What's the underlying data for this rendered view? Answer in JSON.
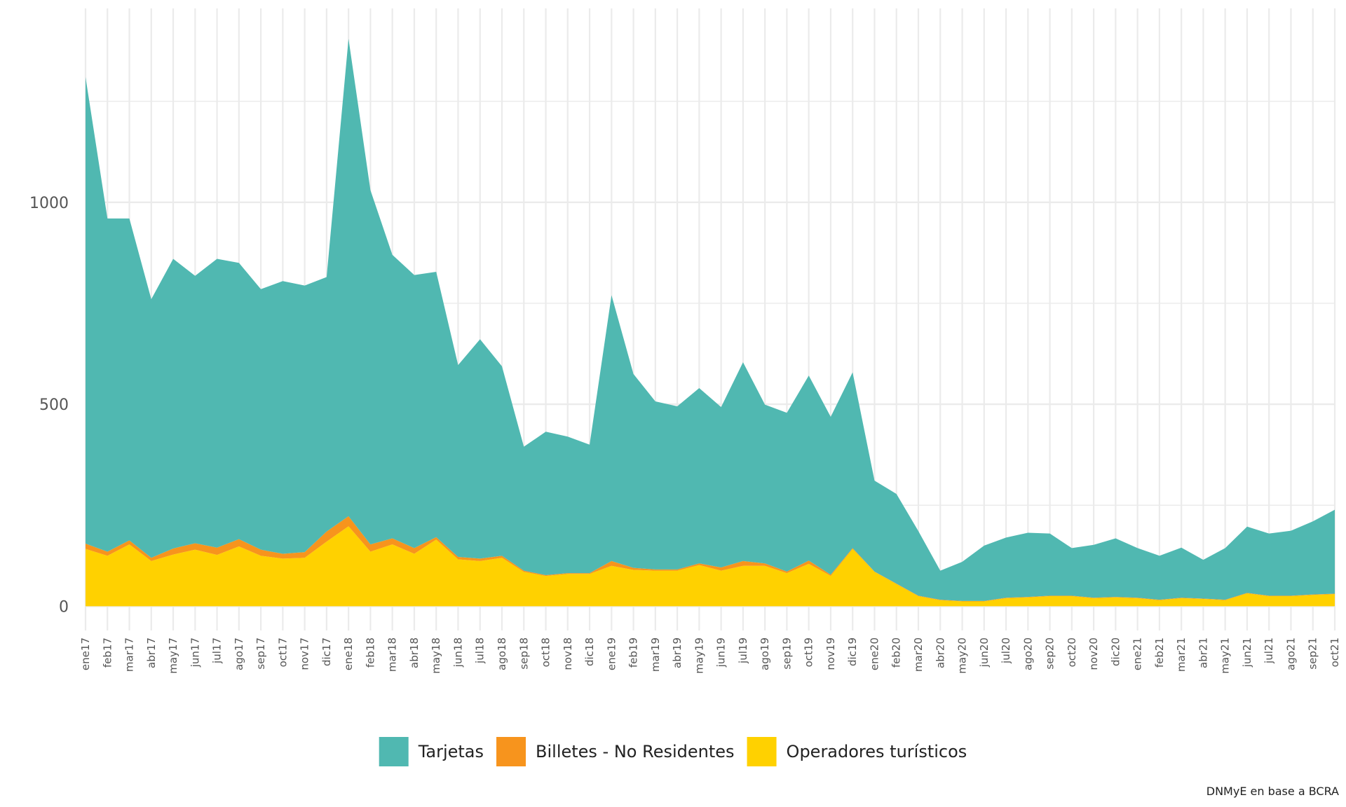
{
  "chart_data": {
    "type": "area",
    "stacked": true,
    "caption": "DNMyE en base a BCRA",
    "categories": [
      "ene17",
      "feb17",
      "mar17",
      "abr17",
      "may17",
      "jun17",
      "jul17",
      "ago17",
      "sep17",
      "oct17",
      "nov17",
      "dic17",
      "ene18",
      "feb18",
      "mar18",
      "abr18",
      "may18",
      "jun18",
      "jul18",
      "ago18",
      "sep18",
      "oct18",
      "nov18",
      "dic18",
      "ene19",
      "feb19",
      "mar19",
      "abr19",
      "may19",
      "jun19",
      "jul19",
      "ago19",
      "sep19",
      "oct19",
      "nov19",
      "dic19",
      "ene20",
      "feb20",
      "mar20",
      "abr20",
      "may20",
      "jun20",
      "jul20",
      "ago20",
      "sep20",
      "oct20",
      "nov20",
      "dic20",
      "ene21",
      "feb21",
      "mar21",
      "abr21",
      "may21",
      "jun21",
      "jul21",
      "ago21",
      "sep21",
      "oct21"
    ],
    "ylim": [
      -60,
      1480
    ],
    "yticks": [
      0,
      500,
      1000
    ],
    "grid": true,
    "legend_position": "bottom",
    "series": [
      {
        "name": "Operadores turísticos",
        "color": "#FFD100",
        "values": [
          142,
          125,
          153,
          112,
          128,
          140,
          127,
          148,
          125,
          118,
          120,
          160,
          198,
          135,
          153,
          130,
          165,
          116,
          112,
          120,
          85,
          75,
          80,
          80,
          100,
          90,
          88,
          88,
          102,
          88,
          100,
          100,
          82,
          105,
          75,
          142,
          85,
          55,
          25,
          15,
          12,
          12,
          20,
          22,
          25,
          25,
          20,
          22,
          20,
          15,
          20,
          18,
          15,
          32,
          25,
          25,
          28,
          30
        ]
      },
      {
        "name": "Billetes - No Residentes",
        "color": "#F7941D",
        "values": [
          13,
          10,
          10,
          8,
          15,
          16,
          18,
          18,
          15,
          12,
          14,
          25,
          25,
          18,
          15,
          14,
          6,
          6,
          6,
          5,
          3,
          2,
          2,
          2,
          12,
          5,
          3,
          3,
          4,
          8,
          12,
          6,
          4,
          8,
          3,
          2,
          1,
          1,
          1,
          1,
          1,
          1,
          1,
          1,
          1,
          1,
          1,
          1,
          1,
          1,
          1,
          1,
          1,
          1,
          1,
          1,
          1,
          1
        ]
      },
      {
        "name": "Tarjetas",
        "color": "#50B8B1",
        "values": [
          1155,
          825,
          797,
          640,
          717,
          662,
          715,
          684,
          645,
          675,
          660,
          630,
          1182,
          877,
          702,
          676,
          657,
          475,
          543,
          469,
          307,
          355,
          338,
          318,
          658,
          480,
          416,
          404,
          434,
          397,
          492,
          393,
          393,
          458,
          391,
          435,
          225,
          222,
          160,
          72,
          97,
          137,
          149,
          159,
          154,
          118,
          131,
          145,
          123,
          109,
          124,
          96,
          128,
          164,
          154,
          161,
          181,
          208
        ]
      }
    ]
  }
}
